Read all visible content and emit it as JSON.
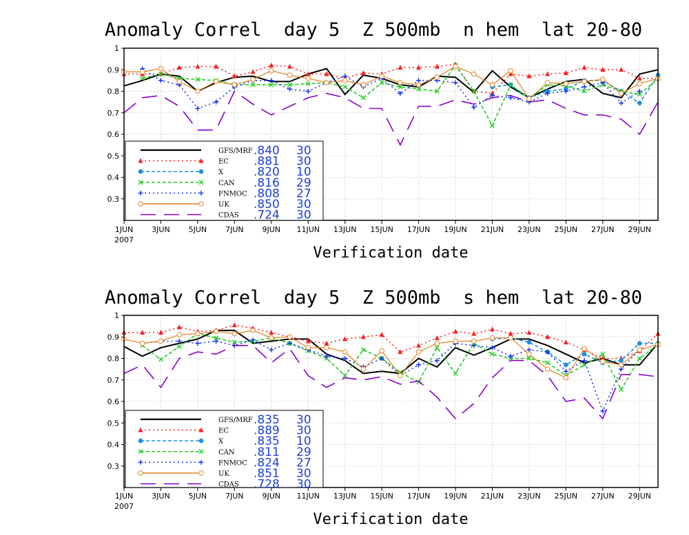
{
  "chart_data": [
    {
      "type": "line",
      "title": "Anomaly Correl  day 5  Z 500mb  n hem  lat 20-80",
      "xlabel": "Verification date",
      "ylabel": "",
      "ylim": [
        0.2,
        1.0
      ],
      "xlim": [
        1,
        30
      ],
      "yticks": [
        "1",
        "0.9",
        "0.8",
        "0.7",
        "0.6",
        "0.5",
        "0.4",
        "0.3"
      ],
      "xticks": [
        "1JUN",
        "3JUN",
        "5JUN",
        "7JUN",
        "9JUN",
        "11JUN",
        "13JUN",
        "15JUN",
        "17JUN",
        "19JUN",
        "21JUN",
        "23JUN",
        "25JUN",
        "27JUN",
        "29JUN"
      ],
      "xtick_year": "2007",
      "grid": true,
      "legend_position": "bottom-left",
      "series": [
        {
          "name": "GFS/MRF",
          "stat_value": ".840",
          "stat_count": "30",
          "color": "#000000",
          "dash": "solid",
          "marker": "none",
          "values": [
            0.825,
            0.85,
            0.88,
            0.87,
            0.8,
            0.84,
            0.865,
            0.87,
            0.845,
            0.845,
            0.88,
            0.905,
            0.785,
            0.875,
            0.86,
            0.83,
            0.82,
            0.87,
            0.865,
            0.795,
            0.895,
            0.82,
            0.77,
            0.81,
            0.845,
            0.855,
            0.79,
            0.77,
            0.88,
            0.9
          ]
        },
        {
          "name": "EC",
          "stat_value": ".881",
          "stat_count": "30",
          "color": "#ff2020",
          "dash": "dotted",
          "marker": "triangle",
          "values": [
            0.88,
            0.88,
            0.88,
            0.91,
            0.915,
            0.915,
            0.87,
            0.89,
            0.92,
            0.915,
            0.88,
            0.88,
            0.86,
            0.885,
            0.88,
            0.91,
            0.91,
            0.915,
            0.925,
            0.8,
            0.79,
            0.88,
            0.87,
            0.88,
            0.885,
            0.91,
            0.9,
            0.9,
            0.86,
            0.86
          ]
        },
        {
          "name": "X",
          "stat_value": ".820",
          "stat_count": "10",
          "color": "#1a8fe0",
          "dash": "dashed",
          "marker": "circle",
          "values": [
            null,
            null,
            null,
            null,
            null,
            null,
            null,
            null,
            null,
            null,
            null,
            null,
            null,
            null,
            null,
            null,
            null,
            null,
            null,
            null,
            0.82,
            0.83,
            0.77,
            0.8,
            0.81,
            0.85,
            0.85,
            0.8,
            0.745,
            0.875
          ]
        },
        {
          "name": "CAN",
          "stat_value": ".816",
          "stat_count": "29",
          "color": "#22cc22",
          "dash": "dashed",
          "marker": "x",
          "values": [
            null,
            0.86,
            0.88,
            0.86,
            0.855,
            0.85,
            0.83,
            0.83,
            0.83,
            0.83,
            0.835,
            0.84,
            0.82,
            0.77,
            0.84,
            0.82,
            0.81,
            0.8,
            0.92,
            0.8,
            0.64,
            0.83,
            0.765,
            0.83,
            0.825,
            0.8,
            0.83,
            0.8,
            0.785,
            0.86
          ]
        },
        {
          "name": "FNMOC",
          "stat_value": ".808",
          "stat_count": "27",
          "color": "#1030ff",
          "dash": "dotted",
          "marker": "plus",
          "values": [
            null,
            0.905,
            0.85,
            0.83,
            0.72,
            0.75,
            0.82,
            0.85,
            0.85,
            0.81,
            0.8,
            0.84,
            0.87,
            0.82,
            0.86,
            0.79,
            0.85,
            0.85,
            0.84,
            0.725,
            0.78,
            0.77,
            0.75,
            0.79,
            0.8,
            0.82,
            0.84,
            0.745,
            0.8,
            null
          ]
        },
        {
          "name": "UK",
          "stat_value": ".850",
          "stat_count": "30",
          "color": "#e08020",
          "dash": "solid",
          "marker": "ocircle",
          "values": [
            0.89,
            0.89,
            0.905,
            0.845,
            0.8,
            0.845,
            0.83,
            0.855,
            0.895,
            0.875,
            0.86,
            0.84,
            0.85,
            0.83,
            0.87,
            0.84,
            0.83,
            0.865,
            0.915,
            0.88,
            0.83,
            0.895,
            0.765,
            0.84,
            0.835,
            0.845,
            0.855,
            0.79,
            0.835,
            0.86
          ]
        },
        {
          "name": "CDAS",
          "stat_value": ".724",
          "stat_count": "30",
          "color": "#8800cc",
          "dash": "longdash",
          "marker": "none",
          "values": [
            0.7,
            0.77,
            0.78,
            0.73,
            0.62,
            0.62,
            0.8,
            0.74,
            0.69,
            0.73,
            0.77,
            0.79,
            0.77,
            0.72,
            0.72,
            0.55,
            0.73,
            0.73,
            0.76,
            0.74,
            0.77,
            0.78,
            0.75,
            0.76,
            0.72,
            0.69,
            0.69,
            0.67,
            0.6,
            0.75
          ]
        }
      ]
    },
    {
      "type": "line",
      "title": "Anomaly Correl  day 5  Z 500mb  s hem  lat 20-80",
      "xlabel": "Verification date",
      "ylabel": "",
      "ylim": [
        0.2,
        1.0
      ],
      "xlim": [
        1,
        30
      ],
      "yticks": [
        "1",
        "0.9",
        "0.8",
        "0.7",
        "0.6",
        "0.5",
        "0.4",
        "0.3"
      ],
      "xticks": [
        "1JUN",
        "3JUN",
        "5JUN",
        "7JUN",
        "9JUN",
        "11JUN",
        "13JUN",
        "15JUN",
        "17JUN",
        "19JUN",
        "21JUN",
        "23JUN",
        "25JUN",
        "27JUN",
        "29JUN"
      ],
      "xtick_year": "2007",
      "grid": true,
      "legend_position": "bottom-left",
      "series": [
        {
          "name": "GFS/MRF",
          "stat_value": ".835",
          "stat_count": "30",
          "color": "#000000",
          "dash": "solid",
          "marker": "none",
          "values": [
            0.855,
            0.81,
            0.85,
            0.87,
            0.89,
            0.93,
            0.93,
            0.87,
            0.88,
            0.89,
            0.89,
            0.82,
            0.79,
            0.73,
            0.74,
            0.73,
            0.8,
            0.76,
            0.85,
            0.815,
            0.85,
            0.89,
            0.89,
            0.86,
            0.82,
            0.78,
            0.8,
            0.77,
            0.77,
            0.87
          ]
        },
        {
          "name": "EC",
          "stat_value": ".889",
          "stat_count": "30",
          "color": "#ff2020",
          "dash": "dotted",
          "marker": "triangle",
          "values": [
            0.92,
            0.92,
            0.92,
            0.945,
            0.925,
            0.93,
            0.955,
            0.94,
            0.92,
            0.9,
            0.88,
            0.87,
            0.89,
            0.9,
            0.91,
            0.83,
            0.86,
            0.895,
            0.925,
            0.915,
            0.935,
            0.915,
            0.92,
            0.9,
            0.875,
            0.84,
            0.8,
            0.8,
            0.835,
            0.915
          ]
        },
        {
          "name": "X",
          "stat_value": ".835",
          "stat_count": "10",
          "color": "#1a8fe0",
          "dash": "dashed",
          "marker": "circle",
          "values": [
            null,
            null,
            null,
            null,
            null,
            null,
            null,
            null,
            null,
            null,
            null,
            null,
            null,
            null,
            null,
            null,
            null,
            null,
            null,
            null,
            0.89,
            0.895,
            0.875,
            0.83,
            0.77,
            0.82,
            0.78,
            0.79,
            0.87,
            0.87
          ]
        },
        {
          "name": "CAN",
          "stat_value": ".811",
          "stat_count": "29",
          "color": "#22cc22",
          "dash": "dashed",
          "marker": "x",
          "values": [
            null,
            0.86,
            0.795,
            0.855,
            0.915,
            0.895,
            0.875,
            0.88,
            0.895,
            0.87,
            0.835,
            0.8,
            0.72,
            0.84,
            0.8,
            0.735,
            0.69,
            0.85,
            0.73,
            0.87,
            0.82,
            0.8,
            0.8,
            0.78,
            0.72,
            0.77,
            0.82,
            0.655,
            0.8,
            0.865
          ]
        },
        {
          "name": "FNMOC",
          "stat_value": ".824",
          "stat_count": "27",
          "color": "#1030ff",
          "dash": "dotted",
          "marker": "plus",
          "values": [
            null,
            0.87,
            0.88,
            0.88,
            0.87,
            0.88,
            0.86,
            0.885,
            0.84,
            0.87,
            0.84,
            0.81,
            0.8,
            0.76,
            0.8,
            0.72,
            0.77,
            0.79,
            0.87,
            0.86,
            0.85,
            0.81,
            0.84,
            0.83,
            0.74,
            0.79,
            0.555,
            0.75,
            0.84,
            null
          ]
        },
        {
          "name": "UK",
          "stat_value": ".851",
          "stat_count": "30",
          "color": "#e08020",
          "dash": "solid",
          "marker": "ocircle",
          "values": [
            0.89,
            0.87,
            0.88,
            0.91,
            0.915,
            0.925,
            0.915,
            0.93,
            0.895,
            0.9,
            0.85,
            0.85,
            0.83,
            0.75,
            0.835,
            0.72,
            0.83,
            0.87,
            0.88,
            0.88,
            0.895,
            0.895,
            0.82,
            0.75,
            0.71,
            0.845,
            0.785,
            0.77,
            0.84,
            0.865
          ]
        },
        {
          "name": "CDAS",
          "stat_value": ".728",
          "stat_count": "30",
          "color": "#8800cc",
          "dash": "longdash",
          "marker": "none",
          "values": [
            0.73,
            0.77,
            0.665,
            0.8,
            0.83,
            0.82,
            0.86,
            0.86,
            0.78,
            0.845,
            0.72,
            0.665,
            0.71,
            0.7,
            0.715,
            0.68,
            0.695,
            0.62,
            0.52,
            0.59,
            0.71,
            0.79,
            0.79,
            0.72,
            0.6,
            0.615,
            0.52,
            0.725,
            0.725,
            0.715
          ]
        }
      ]
    }
  ]
}
